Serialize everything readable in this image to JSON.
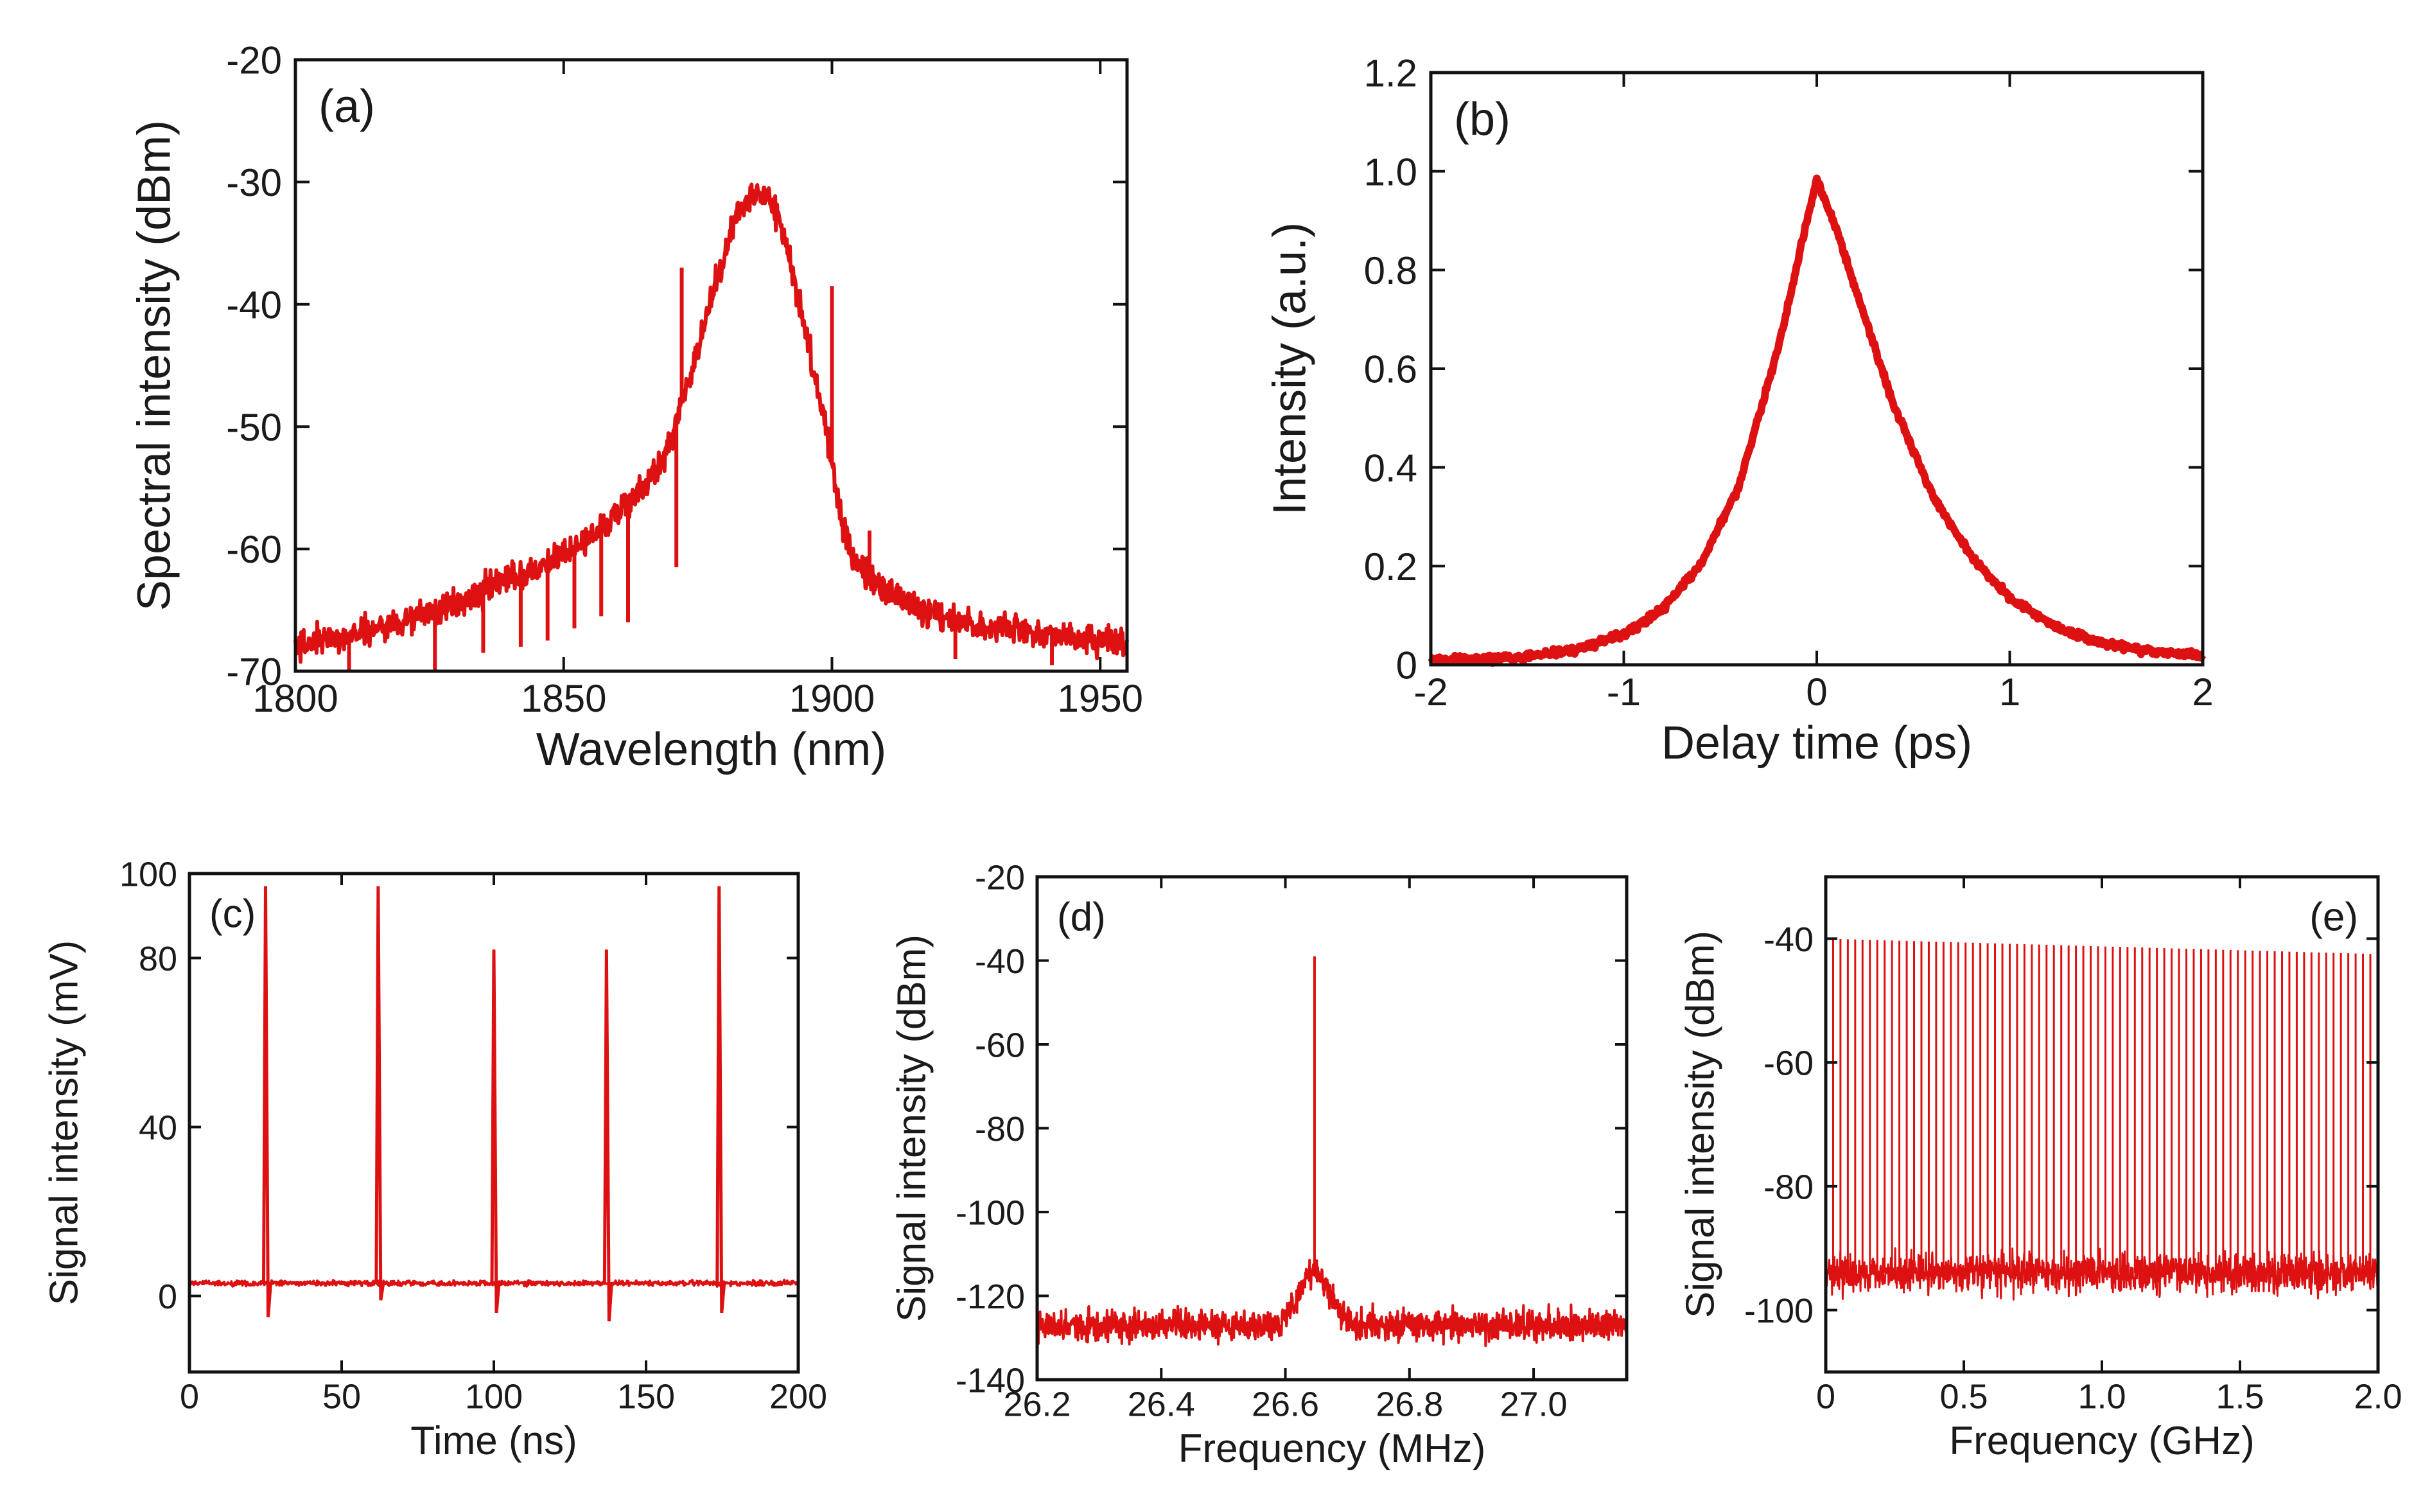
{
  "figure": {
    "line_color": "#dd1111",
    "axis_color": "#111111",
    "background": "#ffffff"
  },
  "chart_data": [
    {
      "id": "a",
      "type": "line",
      "panel_label": "(a)",
      "title": "",
      "xlabel": "Wavelength (nm)",
      "ylabel": "Spectral intensity (dBm)",
      "xlim": [
        1800,
        1955
      ],
      "ylim": [
        -70,
        -20
      ],
      "xticks": [
        1800,
        1850,
        1900,
        1950
      ],
      "xtick_labels": [
        "1800",
        "1850",
        "1900",
        "1950"
      ],
      "yticks": [
        -70,
        -60,
        -50,
        -40,
        -30,
        -20
      ],
      "ytick_labels": [
        "-70",
        "-60",
        "-50",
        "-40",
        "-30",
        "-20"
      ],
      "label_position": "top-left",
      "series": [
        {
          "name": "optical spectrum",
          "x": [
            1800,
            1810,
            1820,
            1830,
            1840,
            1850,
            1855,
            1860,
            1865,
            1868,
            1870,
            1872,
            1874,
            1876,
            1878,
            1880,
            1882,
            1884,
            1886,
            1888,
            1890,
            1892,
            1894,
            1896,
            1898,
            1900,
            1902,
            1904,
            1906,
            1910,
            1915,
            1920,
            1925,
            1930,
            1940,
            1950,
            1955
          ],
          "y": [
            -68,
            -67,
            -66,
            -64.5,
            -62.5,
            -60.5,
            -59,
            -57,
            -55,
            -53,
            -51,
            -48,
            -45,
            -42,
            -39,
            -36,
            -33,
            -31.5,
            -30.5,
            -31,
            -33,
            -36,
            -40,
            -44,
            -48,
            -53,
            -58,
            -61,
            -62,
            -63.5,
            -64.5,
            -65.5,
            -66,
            -66.5,
            -67,
            -67.5,
            -68
          ],
          "noise": 1.2
        },
        {
          "name": "spectral spikes",
          "x": [
            1865,
            1872,
            1900,
            1907
          ],
          "y": [
            -55.5,
            -37,
            -38.5,
            -58.5
          ],
          "kind": "spikes"
        },
        {
          "name": "spectral dips",
          "x": [
            1810,
            1826,
            1835,
            1842,
            1847,
            1852,
            1857,
            1862,
            1871,
            1923,
            1941
          ],
          "y": [
            -70,
            -70,
            -68.5,
            -68,
            -67.5,
            -66.5,
            -65.5,
            -66,
            -61.5,
            -69,
            -69.5
          ],
          "kind": "dips"
        }
      ]
    },
    {
      "id": "b",
      "type": "line",
      "panel_label": "(b)",
      "title": "",
      "xlabel": "Delay time (ps)",
      "ylabel": "Intensity (a.u.)",
      "xlim": [
        -2,
        2
      ],
      "ylim": [
        0,
        1.2
      ],
      "xticks": [
        -2,
        -1,
        0,
        1,
        2
      ],
      "xtick_labels": [
        "-2",
        "-1",
        "0",
        "1",
        "2"
      ],
      "yticks": [
        0,
        0.2,
        0.4,
        0.6,
        0.8,
        1.0,
        1.2
      ],
      "ytick_labels": [
        "0",
        "0.2",
        "0.4",
        "0.6",
        "0.8",
        "1.0",
        "1.2"
      ],
      "label_position": "top-left",
      "series": [
        {
          "name": "autocorrelation trace",
          "x": [
            -2.0,
            -1.75,
            -1.5,
            -1.25,
            -1.0,
            -0.8,
            -0.6,
            -0.4,
            -0.2,
            -0.1,
            0.0,
            0.1,
            0.2,
            0.4,
            0.6,
            0.8,
            1.0,
            1.25,
            1.5,
            1.75,
            2.0
          ],
          "y": [
            0.01,
            0.011,
            0.017,
            0.031,
            0.062,
            0.112,
            0.204,
            0.366,
            0.642,
            0.814,
            0.985,
            0.885,
            0.762,
            0.524,
            0.343,
            0.219,
            0.135,
            0.074,
            0.042,
            0.026,
            0.02
          ],
          "noise": 0.007
        }
      ]
    },
    {
      "id": "c",
      "type": "line",
      "panel_label": "(c)",
      "title": "",
      "xlabel": "Time (ns)",
      "ylabel": "Signal intensity (mV)",
      "xlim": [
        0,
        200
      ],
      "ylim": [
        -18,
        100
      ],
      "xticks": [
        0,
        50,
        100,
        150,
        200
      ],
      "xtick_labels": [
        "0",
        "50",
        "100",
        "150",
        "200"
      ],
      "yticks": [
        0,
        40,
        80,
        100
      ],
      "ytick_labels": [
        "0",
        "40",
        "80",
        "100"
      ],
      "label_position": "top-left",
      "baseline": 3,
      "noise": 0.6,
      "pulses": {
        "x": [
          25,
          62,
          100,
          137,
          174
        ],
        "peak": [
          97,
          97,
          82,
          82,
          97
        ],
        "undershoot": [
          -5,
          -1,
          -4,
          -6,
          -4
        ]
      }
    },
    {
      "id": "d",
      "type": "line",
      "panel_label": "(d)",
      "title": "",
      "xlabel": "Frequency (MHz)",
      "ylabel": "Signal intensity (dBm)",
      "xlim": [
        26.2,
        27.15
      ],
      "ylim": [
        -140,
        -20
      ],
      "xticks": [
        26.2,
        26.4,
        26.6,
        26.8,
        27.0
      ],
      "xtick_labels": [
        "26.2",
        "26.4",
        "26.6",
        "26.8",
        "27.0"
      ],
      "yticks": [
        -140,
        -120,
        -100,
        -80,
        -60,
        -40,
        -20
      ],
      "ytick_labels": [
        "-140",
        "-120",
        "-100",
        "-80",
        "-60",
        "-40",
        "-20"
      ],
      "label_position": "top-left",
      "noise_floor": -127,
      "noise": 3.5,
      "peak": {
        "x": 26.647,
        "y": -39,
        "pedestal": -114
      }
    },
    {
      "id": "e",
      "type": "line",
      "panel_label": "(e)",
      "title": "",
      "xlabel": "Frequency (GHz)",
      "ylabel": "Signal intensity (dBm)",
      "xlim": [
        0,
        2.0
      ],
      "ylim": [
        -110,
        -30
      ],
      "xticks": [
        0,
        0.5,
        1.0,
        1.5,
        2.0
      ],
      "xtick_labels": [
        "0",
        "0.5",
        "1.0",
        "1.5",
        "2.0"
      ],
      "yticks": [
        -100,
        -80,
        -60,
        -40
      ],
      "ytick_labels": [
        "-100",
        "-80",
        "-60",
        "-40"
      ],
      "label_position": "top-right",
      "noise_floor": -94,
      "noise": 3,
      "comb": {
        "spacing": 0.02665,
        "start_level": -40,
        "end_level": -42.5
      }
    }
  ]
}
